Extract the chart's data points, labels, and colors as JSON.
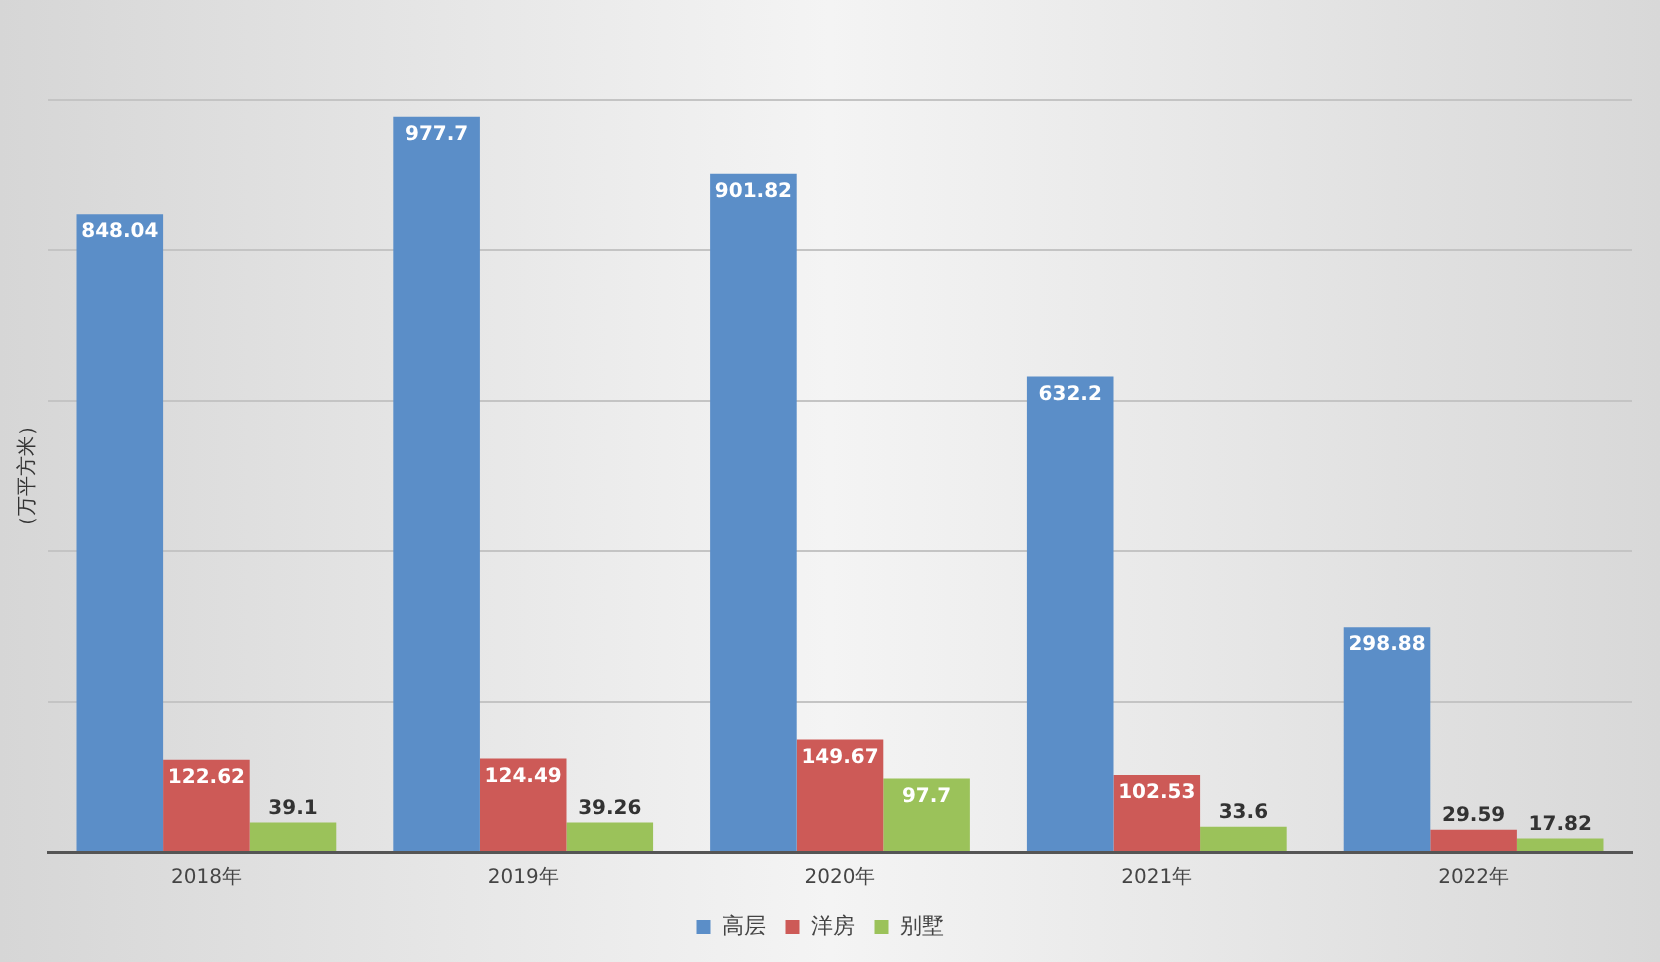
{
  "chart_data": {
    "type": "bar",
    "ylabel": "（万平方米）",
    "categories": [
      "2018年",
      "2019年",
      "2020年",
      "2021年",
      "2022年"
    ],
    "series": [
      {
        "name": "高层",
        "color": "#5b8ec8",
        "values": [
          848.04,
          977.7,
          901.82,
          632.2,
          298.88
        ]
      },
      {
        "name": "洋房",
        "color": "#cd5a57",
        "values": [
          122.62,
          124.49,
          149.67,
          102.53,
          29.59
        ]
      },
      {
        "name": "别墅",
        "color": "#9bc25a",
        "values": [
          39.1,
          39.26,
          97.7,
          33.6,
          17.82
        ]
      }
    ],
    "ylim": [
      0,
      1000
    ],
    "yticks": [
      {
        "value": 0,
        "label": null
      },
      {
        "value": 200,
        "label": null
      },
      {
        "value": 400,
        "label": null
      },
      {
        "value": 600,
        "label": null
      },
      {
        "value": 800,
        "label": null
      },
      {
        "value": 1000,
        "label": null
      }
    ],
    "grid": "y",
    "legend": "bottom",
    "data_labels": true,
    "tick_labels": "x"
  }
}
